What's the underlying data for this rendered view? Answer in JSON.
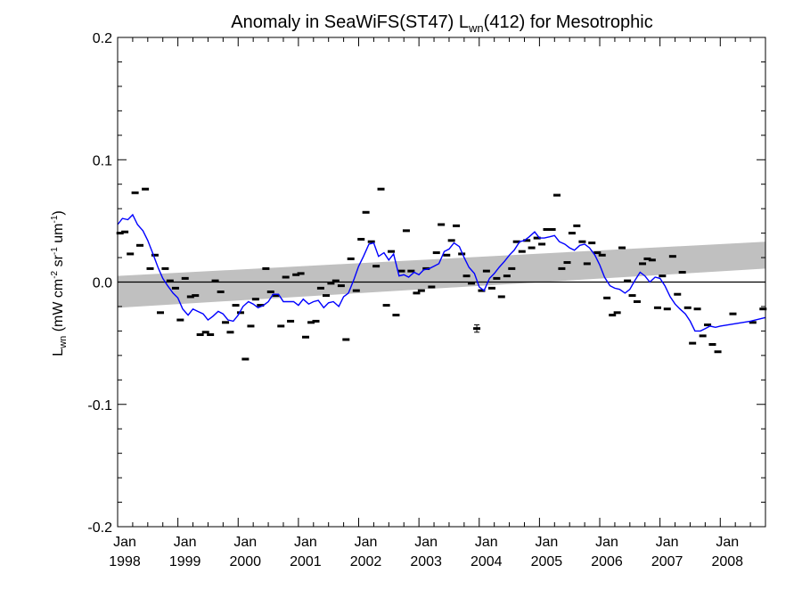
{
  "chart_data": {
    "type": "scatter",
    "title_pre": "Anomaly in SeaWiFS(ST47) L",
    "title_sub": "wn",
    "title_post": "(412) for Mesotrophic",
    "ylabel_pre": "L",
    "ylabel_sub": "wn",
    "ylabel_mid": " (mW cm",
    "ylabel_sup1": "-2",
    "ylabel_mid2": " sr",
    "ylabel_sup2": "-1",
    "ylabel_mid3": " um",
    "ylabel_sup3": "-1",
    "ylabel_post": ")",
    "xlim": [
      1998.0,
      2008.75
    ],
    "ylim": [
      -0.2,
      0.2
    ],
    "y_ticks": [
      {
        "value": 0.2,
        "label": "0.2"
      },
      {
        "value": 0.1,
        "label": "0.1"
      },
      {
        "value": 0.0,
        "label": "0.0"
      },
      {
        "value": -0.1,
        "label": "-0.1"
      },
      {
        "value": -0.2,
        "label": "-0.2"
      }
    ],
    "x_ticks": [
      {
        "value": 1998.0,
        "month": "Jan",
        "year": "1998"
      },
      {
        "value": 1999.0,
        "month": "Jan",
        "year": "1999"
      },
      {
        "value": 2000.0,
        "month": "Jan",
        "year": "2000"
      },
      {
        "value": 2001.0,
        "month": "Jan",
        "year": "2001"
      },
      {
        "value": 2002.0,
        "month": "Jan",
        "year": "2002"
      },
      {
        "value": 2003.0,
        "month": "Jan",
        "year": "2003"
      },
      {
        "value": 2004.0,
        "month": "Jan",
        "year": "2004"
      },
      {
        "value": 2005.0,
        "month": "Jan",
        "year": "2005"
      },
      {
        "value": 2006.0,
        "month": "Jan",
        "year": "2006"
      },
      {
        "value": 2007.0,
        "month": "Jan",
        "year": "2007"
      },
      {
        "value": 2008.0,
        "month": "Jan",
        "year": "2008"
      }
    ],
    "band": {
      "x": [
        1998.0,
        2008.75
      ],
      "lower": [
        -0.021,
        0.011
      ],
      "upper": [
        0.005,
        0.033
      ],
      "color": "#c0c0c0"
    },
    "zero_line": 0.0,
    "colors": {
      "points": "#000000",
      "running_mean": "#0000ff",
      "band": "#c0c0c0"
    },
    "points": [
      {
        "x": 1998.04,
        "y": 0.04
      },
      {
        "x": 1998.12,
        "y": 0.041
      },
      {
        "x": 1998.21,
        "y": 0.023
      },
      {
        "x": 1998.29,
        "y": 0.073
      },
      {
        "x": 1998.37,
        "y": 0.03
      },
      {
        "x": 1998.46,
        "y": 0.076
      },
      {
        "x": 1998.54,
        "y": 0.011
      },
      {
        "x": 1998.62,
        "y": 0.022
      },
      {
        "x": 1998.71,
        "y": -0.025
      },
      {
        "x": 1998.79,
        "y": 0.011
      },
      {
        "x": 1998.87,
        "y": 0.001
      },
      {
        "x": 1998.96,
        "y": -0.005
      },
      {
        "x": 1999.04,
        "y": -0.031
      },
      {
        "x": 1999.12,
        "y": 0.003
      },
      {
        "x": 1999.21,
        "y": -0.012
      },
      {
        "x": 1999.29,
        "y": -0.011
      },
      {
        "x": 1999.37,
        "y": -0.043
      },
      {
        "x": 1999.46,
        "y": -0.041
      },
      {
        "x": 1999.54,
        "y": -0.043
      },
      {
        "x": 1999.62,
        "y": 0.001
      },
      {
        "x": 1999.71,
        "y": -0.008
      },
      {
        "x": 1999.79,
        "y": -0.033
      },
      {
        "x": 1999.87,
        "y": -0.041
      },
      {
        "x": 1999.96,
        "y": -0.019
      },
      {
        "x": 2000.04,
        "y": -0.025
      },
      {
        "x": 2000.12,
        "y": -0.063
      },
      {
        "x": 2000.21,
        "y": -0.036
      },
      {
        "x": 2000.29,
        "y": -0.014
      },
      {
        "x": 2000.37,
        "y": -0.019
      },
      {
        "x": 2000.46,
        "y": 0.011
      },
      {
        "x": 2000.54,
        "y": -0.008
      },
      {
        "x": 2000.62,
        "y": -0.011
      },
      {
        "x": 2000.71,
        "y": -0.036
      },
      {
        "x": 2000.79,
        "y": 0.004
      },
      {
        "x": 2000.87,
        "y": -0.032
      },
      {
        "x": 2000.96,
        "y": 0.006
      },
      {
        "x": 2001.04,
        "y": 0.007
      },
      {
        "x": 2001.12,
        "y": -0.045
      },
      {
        "x": 2001.21,
        "y": -0.033
      },
      {
        "x": 2001.29,
        "y": -0.032
      },
      {
        "x": 2001.37,
        "y": -0.005
      },
      {
        "x": 2001.46,
        "y": -0.011
      },
      {
        "x": 2001.54,
        "y": -0.001
      },
      {
        "x": 2001.62,
        "y": 0.001
      },
      {
        "x": 2001.71,
        "y": -0.003
      },
      {
        "x": 2001.79,
        "y": -0.047
      },
      {
        "x": 2001.87,
        "y": 0.019
      },
      {
        "x": 2001.96,
        "y": -0.007
      },
      {
        "x": 2002.04,
        "y": 0.035
      },
      {
        "x": 2002.12,
        "y": 0.057
      },
      {
        "x": 2002.21,
        "y": 0.033
      },
      {
        "x": 2002.29,
        "y": 0.013
      },
      {
        "x": 2002.37,
        "y": 0.076
      },
      {
        "x": 2002.46,
        "y": -0.019
      },
      {
        "x": 2002.54,
        "y": 0.025
      },
      {
        "x": 2002.62,
        "y": -0.027
      },
      {
        "x": 2002.71,
        "y": 0.009
      },
      {
        "x": 2002.79,
        "y": 0.042
      },
      {
        "x": 2002.87,
        "y": 0.009
      },
      {
        "x": 2002.96,
        "y": -0.009
      },
      {
        "x": 2003.04,
        "y": -0.007
      },
      {
        "x": 2003.12,
        "y": 0.011
      },
      {
        "x": 2003.21,
        "y": -0.004
      },
      {
        "x": 2003.29,
        "y": 0.024
      },
      {
        "x": 2003.37,
        "y": 0.047
      },
      {
        "x": 2003.46,
        "y": 0.022
      },
      {
        "x": 2003.54,
        "y": 0.034
      },
      {
        "x": 2003.62,
        "y": 0.046
      },
      {
        "x": 2003.71,
        "y": 0.023
      },
      {
        "x": 2003.79,
        "y": 0.005
      },
      {
        "x": 2003.87,
        "y": -0.001
      },
      {
        "x": 2003.96,
        "y": -0.038
      },
      {
        "x": 2004.04,
        "y": -0.007
      },
      {
        "x": 2004.12,
        "y": 0.009
      },
      {
        "x": 2004.21,
        "y": -0.005
      },
      {
        "x": 2004.29,
        "y": 0.003
      },
      {
        "x": 2004.37,
        "y": -0.012
      },
      {
        "x": 2004.46,
        "y": 0.005
      },
      {
        "x": 2004.54,
        "y": 0.011
      },
      {
        "x": 2004.62,
        "y": 0.033
      },
      {
        "x": 2004.71,
        "y": 0.025
      },
      {
        "x": 2004.79,
        "y": 0.034
      },
      {
        "x": 2004.87,
        "y": 0.028
      },
      {
        "x": 2004.96,
        "y": 0.036
      },
      {
        "x": 2005.04,
        "y": 0.031
      },
      {
        "x": 2005.12,
        "y": 0.043
      },
      {
        "x": 2005.21,
        "y": 0.043
      },
      {
        "x": 2005.29,
        "y": 0.071
      },
      {
        "x": 2005.37,
        "y": 0.011
      },
      {
        "x": 2005.46,
        "y": 0.016
      },
      {
        "x": 2005.54,
        "y": 0.04
      },
      {
        "x": 2005.62,
        "y": 0.046
      },
      {
        "x": 2005.71,
        "y": 0.033
      },
      {
        "x": 2005.79,
        "y": 0.015
      },
      {
        "x": 2005.87,
        "y": 0.032
      },
      {
        "x": 2005.96,
        "y": 0.024
      },
      {
        "x": 2006.04,
        "y": 0.022
      },
      {
        "x": 2006.12,
        "y": -0.013
      },
      {
        "x": 2006.21,
        "y": -0.027
      },
      {
        "x": 2006.29,
        "y": -0.025
      },
      {
        "x": 2006.37,
        "y": 0.028
      },
      {
        "x": 2006.46,
        "y": 0.001
      },
      {
        "x": 2006.54,
        "y": -0.011
      },
      {
        "x": 2006.62,
        "y": -0.016
      },
      {
        "x": 2006.71,
        "y": 0.015
      },
      {
        "x": 2006.79,
        "y": 0.019
      },
      {
        "x": 2006.87,
        "y": 0.018
      },
      {
        "x": 2006.96,
        "y": -0.021
      },
      {
        "x": 2007.04,
        "y": 0.005
      },
      {
        "x": 2007.12,
        "y": -0.022
      },
      {
        "x": 2007.21,
        "y": 0.021
      },
      {
        "x": 2007.29,
        "y": -0.01
      },
      {
        "x": 2007.37,
        "y": 0.008
      },
      {
        "x": 2007.46,
        "y": -0.021
      },
      {
        "x": 2007.54,
        "y": -0.05
      },
      {
        "x": 2007.62,
        "y": -0.022
      },
      {
        "x": 2007.71,
        "y": -0.044
      },
      {
        "x": 2007.79,
        "y": -0.035
      },
      {
        "x": 2007.87,
        "y": -0.051
      },
      {
        "x": 2007.96,
        "y": -0.057
      },
      {
        "x": 2008.21,
        "y": -0.026
      },
      {
        "x": 2008.54,
        "y": -0.033
      },
      {
        "x": 2008.71,
        "y": -0.022
      }
    ],
    "error_bar": {
      "x": 2003.96,
      "y": -0.038,
      "err": 0.003
    },
    "running_mean": {
      "x": [
        1998.0,
        1998.08,
        1998.17,
        1998.25,
        1998.33,
        1998.42,
        1998.5,
        1998.58,
        1998.67,
        1998.75,
        1998.83,
        1998.92,
        1999.0,
        1999.08,
        1999.17,
        1999.25,
        1999.33,
        1999.42,
        1999.5,
        1999.58,
        1999.67,
        1999.75,
        1999.83,
        1999.92,
        2000.0,
        2000.08,
        2000.17,
        2000.25,
        2000.33,
        2000.42,
        2000.5,
        2000.58,
        2000.67,
        2000.75,
        2000.83,
        2000.92,
        2001.0,
        2001.08,
        2001.17,
        2001.25,
        2001.33,
        2001.42,
        2001.5,
        2001.58,
        2001.67,
        2001.75,
        2001.83,
        2001.92,
        2002.0,
        2002.08,
        2002.17,
        2002.25,
        2002.33,
        2002.42,
        2002.5,
        2002.58,
        2002.67,
        2002.75,
        2002.83,
        2002.92,
        2003.0,
        2003.08,
        2003.17,
        2003.25,
        2003.33,
        2003.42,
        2003.5,
        2003.58,
        2003.67,
        2003.75,
        2003.83,
        2003.92,
        2004.0,
        2004.08,
        2004.17,
        2004.25,
        2004.33,
        2004.42,
        2004.5,
        2004.58,
        2004.67,
        2004.75,
        2004.83,
        2004.92,
        2005.0,
        2005.08,
        2005.17,
        2005.25,
        2005.33,
        2005.42,
        2005.5,
        2005.58,
        2005.67,
        2005.75,
        2005.83,
        2005.92,
        2006.0,
        2006.08,
        2006.17,
        2006.25,
        2006.33,
        2006.42,
        2006.5,
        2006.58,
        2006.67,
        2006.75,
        2006.83,
        2006.92,
        2007.0,
        2007.08,
        2007.17,
        2007.25,
        2007.33,
        2007.42,
        2007.5,
        2007.58,
        2007.67,
        2007.75,
        2007.83,
        2007.92,
        2008.0,
        2008.25,
        2008.5,
        2008.75
      ],
      "y": [
        0.047,
        0.052,
        0.051,
        0.055,
        0.047,
        0.042,
        0.034,
        0.024,
        0.012,
        0.003,
        -0.003,
        -0.009,
        -0.013,
        -0.022,
        -0.027,
        -0.022,
        -0.024,
        -0.026,
        -0.031,
        -0.028,
        -0.024,
        -0.026,
        -0.031,
        -0.032,
        -0.027,
        -0.02,
        -0.016,
        -0.018,
        -0.021,
        -0.019,
        -0.016,
        -0.01,
        -0.01,
        -0.016,
        -0.016,
        -0.016,
        -0.019,
        -0.014,
        -0.018,
        -0.016,
        -0.015,
        -0.021,
        -0.017,
        -0.016,
        -0.02,
        -0.012,
        -0.009,
        0.002,
        0.013,
        0.021,
        0.031,
        0.032,
        0.021,
        0.024,
        0.018,
        0.023,
        0.005,
        0.006,
        0.004,
        0.008,
        0.006,
        0.01,
        0.011,
        0.013,
        0.015,
        0.025,
        0.027,
        0.032,
        0.029,
        0.02,
        0.012,
        0.007,
        -0.004,
        -0.007,
        0.003,
        0.007,
        0.012,
        0.017,
        0.022,
        0.026,
        0.033,
        0.034,
        0.037,
        0.041,
        0.036,
        0.036,
        0.037,
        0.038,
        0.033,
        0.031,
        0.028,
        0.026,
        0.03,
        0.031,
        0.028,
        0.022,
        0.014,
        0.004,
        -0.003,
        -0.005,
        -0.006,
        -0.009,
        -0.006,
        0.001,
        0.008,
        0.005,
        0.0,
        0.004,
        0.003,
        -0.003,
        -0.012,
        -0.018,
        -0.022,
        -0.026,
        -0.032,
        -0.04,
        -0.04,
        -0.038,
        -0.036,
        -0.037,
        -0.036,
        -0.034,
        -0.032,
        -0.029
      ]
    }
  }
}
